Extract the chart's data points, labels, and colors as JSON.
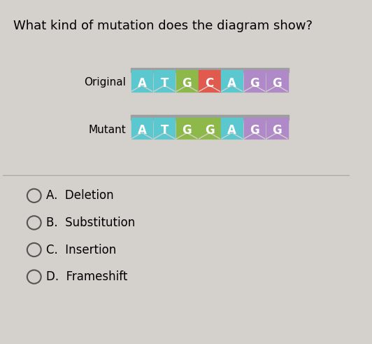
{
  "title": "What kind of mutation does the diagram show?",
  "title_fontsize": 13,
  "background_color": "#e8e8e8",
  "page_background": "#d4d0cc",
  "original_label": "Original",
  "mutant_label": "Mutant",
  "original_bases": [
    "A",
    "T",
    "G",
    "C",
    "A",
    "G",
    "G"
  ],
  "mutant_bases": [
    "A",
    "T",
    "G",
    "G",
    "A",
    "G",
    "G"
  ],
  "original_colors": [
    "#5bc8d0",
    "#5bc8d0",
    "#8db84a",
    "#e05a4e",
    "#5bc8d0",
    "#b08ac8",
    "#b08ac8"
  ],
  "mutant_colors": [
    "#5bc8d0",
    "#5bc8d0",
    "#8db84a",
    "#8db84a",
    "#5bc8d0",
    "#b08ac8",
    "#b08ac8"
  ],
  "bar_top_color": "#9e9e9e",
  "options": [
    "A.  Deletion",
    "B.  Substitution",
    "C.  Insertion",
    "D.  Frameshift"
  ],
  "options_fontsize": 12,
  "label_fontsize": 11,
  "base_fontsize": 12
}
